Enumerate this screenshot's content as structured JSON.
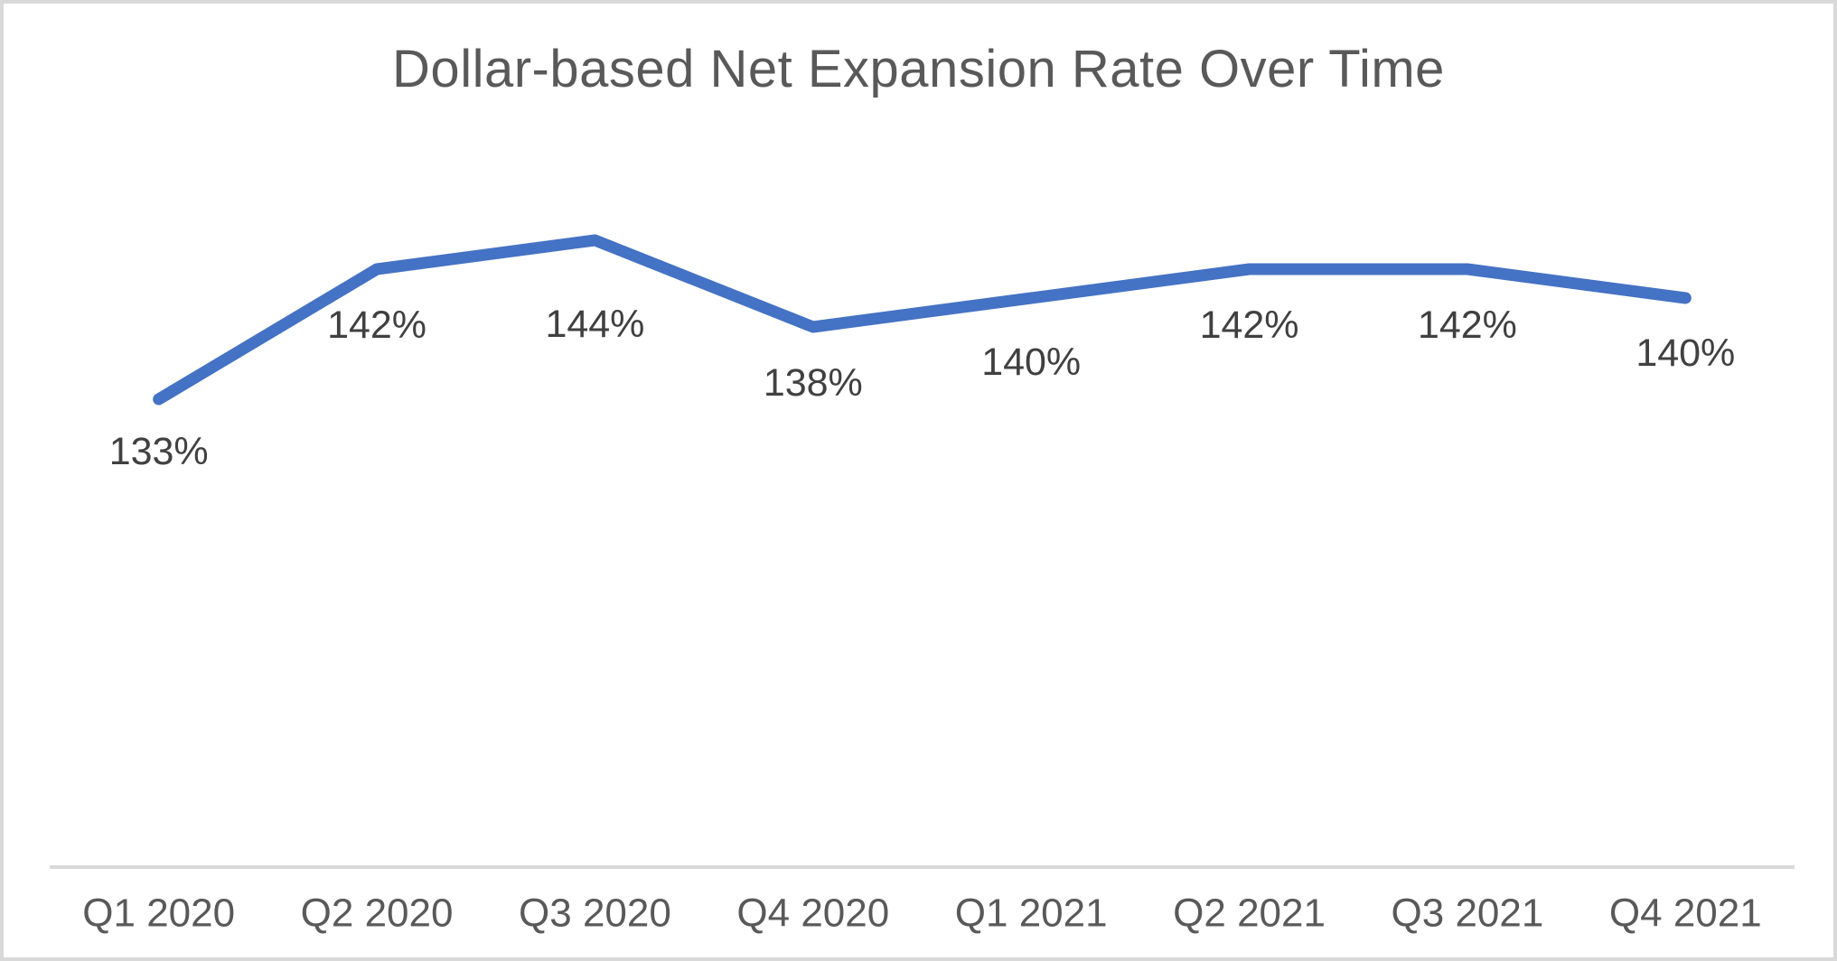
{
  "page": {
    "background_color": "#ffffff",
    "border_color": "#d9d9d9"
  },
  "chart_data": {
    "type": "line",
    "title": "Dollar-based Net Expansion Rate Over Time",
    "categories": [
      "Q1 2020",
      "Q2 2020",
      "Q3 2020",
      "Q4 2020",
      "Q1 2021",
      "Q2 2021",
      "Q3 2021",
      "Q4 2021"
    ],
    "values": [
      133,
      142,
      144,
      138,
      140,
      142,
      142,
      140
    ],
    "labels": [
      "133%",
      "142%",
      "144%",
      "138%",
      "140%",
      "142%",
      "142%",
      "140%"
    ],
    "xlabel": "",
    "ylabel": "",
    "value_suffix": "%",
    "y_axis_visible": false,
    "gridlines": false,
    "legend": "none",
    "data_label_position": "below-point",
    "label_dy": [
      58,
      62,
      93,
      62,
      71,
      62,
      62,
      61
    ],
    "ylim": [
      130,
      146
    ],
    "colors": {
      "line": "#4472c4",
      "title": "#595959",
      "data_label": "#404040",
      "axis_label": "#595959",
      "axis_line": "#d9d9d9"
    }
  }
}
